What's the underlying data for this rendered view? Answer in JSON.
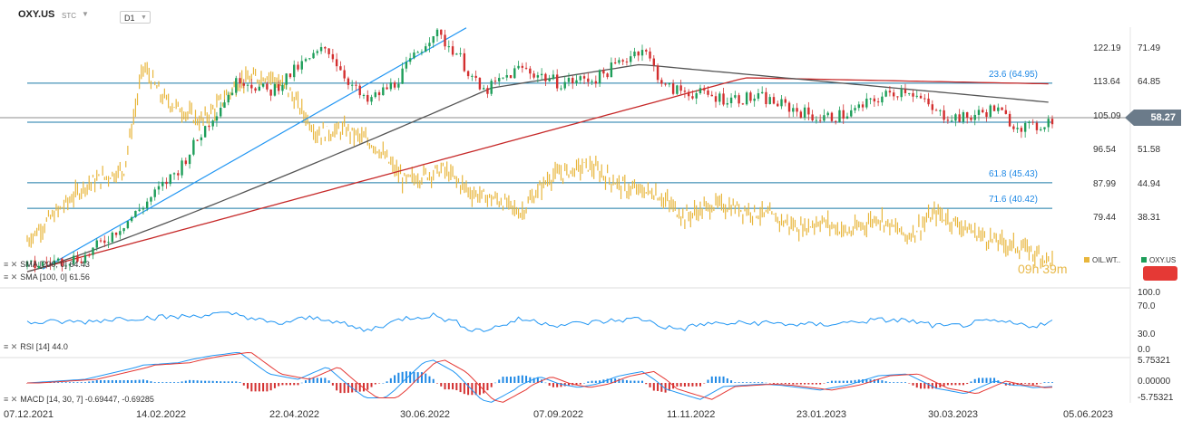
{
  "header": {
    "symbol": "OXY.US",
    "instrument_type": "STC",
    "timeframe": "D1"
  },
  "price_badge": "58.27",
  "countdown": "09h 39m",
  "legend": {
    "oil": "OIL.WT..",
    "oxy": "OXY.US"
  },
  "indicators": {
    "sma200": "SMA [200, 0]  64.43",
    "sma100": "SMA [100, 0]  61.56",
    "rsi": "RSI [14]  44.0",
    "macd": "MACD [14, 30, 7]  -0.69447,  -0.69285"
  },
  "colors": {
    "bull": "#1e9e5a",
    "bear": "#d32f2f",
    "oil": "#e8b63c",
    "trend": "#2196f3",
    "sma200": "#c62828",
    "sma100": "#555555",
    "fib": "#1976d2",
    "rsi": "#2196f3",
    "macd": "#2196f3",
    "signal": "#e53935"
  },
  "chart_data": {
    "type": "candlestick",
    "x_dates": [
      "07.12.2021",
      "14.02.2022",
      "22.04.2022",
      "30.06.2022",
      "07.09.2022",
      "11.11.2022",
      "23.01.2023",
      "30.03.2023",
      "05.06.2023"
    ],
    "left_axis": {
      "label_oil": [
        122.19,
        113.64,
        105.09,
        96.54,
        87.99,
        79.44
      ]
    },
    "right_axis": {
      "label_oxy": [
        71.49,
        64.85,
        58.27,
        51.58,
        44.94,
        38.31
      ]
    },
    "fib_levels": [
      {
        "label": "23.6 (64.95)",
        "value": 64.95
      },
      {
        "label": "61.8 (45.43)",
        "value": 45.43
      },
      {
        "label": "71.6 (40.42)",
        "value": 40.42
      }
    ],
    "rsi_axis": [
      "100.0",
      "70.0",
      "30.0",
      "0.0"
    ],
    "macd_axis": [
      "5.75321",
      "0.00000",
      "-5.75321"
    ],
    "oxy_keypoints": [
      [
        0,
        29
      ],
      [
        30,
        31
      ],
      [
        55,
        39
      ],
      [
        78,
        48
      ],
      [
        95,
        58
      ],
      [
        110,
        66
      ],
      [
        125,
        63
      ],
      [
        140,
        68
      ],
      [
        155,
        72
      ],
      [
        165,
        66
      ],
      [
        175,
        61
      ],
      [
        190,
        65
      ],
      [
        210,
        75
      ],
      [
        222,
        71
      ],
      [
        235,
        63
      ],
      [
        255,
        68
      ],
      [
        275,
        65
      ],
      [
        295,
        66
      ],
      [
        310,
        70
      ],
      [
        318,
        72
      ],
      [
        330,
        64
      ],
      [
        345,
        63
      ],
      [
        360,
        62
      ],
      [
        380,
        62
      ],
      [
        395,
        60
      ],
      [
        410,
        58
      ],
      [
        425,
        59
      ],
      [
        440,
        62
      ],
      [
        455,
        64
      ],
      [
        470,
        59
      ],
      [
        485,
        58
      ],
      [
        500,
        60
      ],
      [
        510,
        57
      ],
      [
        520,
        56
      ],
      [
        530,
        58
      ]
    ],
    "oil_keypoints": [
      [
        0,
        74
      ],
      [
        30,
        88
      ],
      [
        50,
        92
      ],
      [
        60,
        118
      ],
      [
        70,
        110
      ],
      [
        90,
        104
      ],
      [
        110,
        114
      ],
      [
        125,
        116
      ],
      [
        135,
        112
      ],
      [
        150,
        101
      ],
      [
        165,
        102
      ],
      [
        180,
        98
      ],
      [
        195,
        89
      ],
      [
        215,
        92
      ],
      [
        230,
        86
      ],
      [
        245,
        84
      ],
      [
        255,
        81
      ],
      [
        270,
        90
      ],
      [
        290,
        93
      ],
      [
        310,
        87
      ],
      [
        325,
        86
      ],
      [
        340,
        80
      ],
      [
        355,
        83
      ],
      [
        370,
        82
      ],
      [
        385,
        80
      ],
      [
        400,
        77
      ],
      [
        410,
        79
      ],
      [
        425,
        76
      ],
      [
        440,
        80
      ],
      [
        455,
        75
      ],
      [
        470,
        81
      ],
      [
        490,
        76
      ],
      [
        500,
        74
      ],
      [
        515,
        72
      ],
      [
        530,
        69
      ]
    ]
  }
}
